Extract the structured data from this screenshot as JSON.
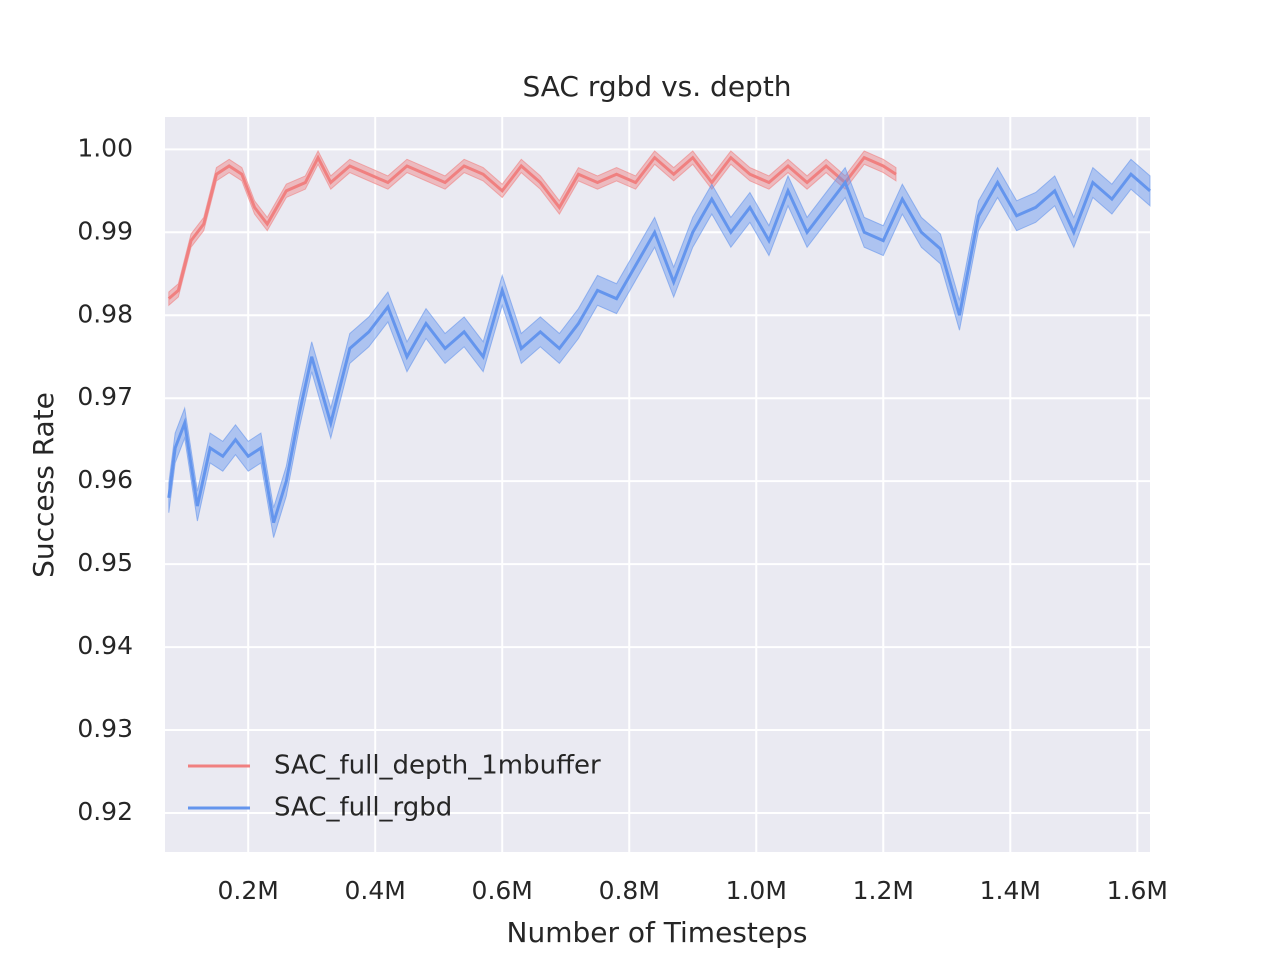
{
  "chart_data": {
    "type": "line",
    "title": "SAC rgbd vs. depth",
    "x_label": "Number of Timesteps",
    "y_label": "Success Rate",
    "xlim": [
      69000,
      1620000
    ],
    "ylim": [
      0.9153,
      1.0039
    ],
    "xticks": [
      {
        "value": 200000,
        "label": "0.2M"
      },
      {
        "value": 400000,
        "label": "0.4M"
      },
      {
        "value": 600000,
        "label": "0.6M"
      },
      {
        "value": 800000,
        "label": "0.8M"
      },
      {
        "value": 1000000,
        "label": "1.0M"
      },
      {
        "value": 1200000,
        "label": "1.2M"
      },
      {
        "value": 1400000,
        "label": "1.4M"
      },
      {
        "value": 1600000,
        "label": "1.6M"
      }
    ],
    "yticks": [
      0.92,
      0.93,
      0.94,
      0.95,
      0.96,
      0.97,
      0.98,
      0.99,
      {
        "value": 1.0,
        "label": "1.00"
      }
    ],
    "grid": true,
    "legend": "lower left",
    "series": [
      {
        "name": "SAC_full_depth_1mbuffer",
        "color": "#f08080",
        "error": 0.0008,
        "x": [
          75000,
          90000,
          110000,
          130000,
          150000,
          170000,
          190000,
          210000,
          230000,
          260000,
          290000,
          310000,
          330000,
          360000,
          390000,
          420000,
          450000,
          480000,
          510000,
          540000,
          570000,
          600000,
          630000,
          660000,
          690000,
          720000,
          750000,
          780000,
          810000,
          840000,
          870000,
          900000,
          930000,
          960000,
          990000,
          1020000,
          1050000,
          1080000,
          1110000,
          1140000,
          1170000,
          1200000,
          1220000
        ],
        "values": [
          0.982,
          0.983,
          0.989,
          0.991,
          0.997,
          0.998,
          0.997,
          0.993,
          0.991,
          0.995,
          0.996,
          0.999,
          0.996,
          0.998,
          0.997,
          0.996,
          0.998,
          0.997,
          0.996,
          0.998,
          0.997,
          0.995,
          0.998,
          0.996,
          0.993,
          0.997,
          0.996,
          0.997,
          0.996,
          0.999,
          0.997,
          0.999,
          0.996,
          0.999,
          0.997,
          0.996,
          0.998,
          0.996,
          0.998,
          0.996,
          0.999,
          0.998,
          0.997
        ]
      },
      {
        "name": "SAC_full_rgbd",
        "color": "#6495ed",
        "error": 0.0018,
        "x": [
          75000,
          85000,
          100000,
          120000,
          140000,
          160000,
          180000,
          200000,
          220000,
          240000,
          260000,
          280000,
          300000,
          330000,
          360000,
          390000,
          420000,
          450000,
          480000,
          510000,
          540000,
          570000,
          600000,
          630000,
          660000,
          690000,
          720000,
          750000,
          780000,
          810000,
          840000,
          870000,
          900000,
          930000,
          960000,
          990000,
          1020000,
          1050000,
          1080000,
          1110000,
          1140000,
          1170000,
          1200000,
          1230000,
          1260000,
          1290000,
          1320000,
          1350000,
          1380000,
          1410000,
          1440000,
          1470000,
          1500000,
          1530000,
          1560000,
          1590000,
          1620000
        ],
        "values": [
          0.958,
          0.964,
          0.967,
          0.957,
          0.964,
          0.963,
          0.965,
          0.963,
          0.964,
          0.955,
          0.96,
          0.968,
          0.975,
          0.967,
          0.976,
          0.978,
          0.981,
          0.975,
          0.979,
          0.976,
          0.978,
          0.975,
          0.983,
          0.976,
          0.978,
          0.976,
          0.979,
          0.983,
          0.982,
          0.986,
          0.99,
          0.984,
          0.99,
          0.994,
          0.99,
          0.993,
          0.989,
          0.995,
          0.99,
          0.993,
          0.996,
          0.99,
          0.989,
          0.994,
          0.99,
          0.988,
          0.98,
          0.992,
          0.996,
          0.992,
          0.993,
          0.995,
          0.99,
          0.996,
          0.994,
          0.997,
          0.995
        ]
      }
    ]
  }
}
